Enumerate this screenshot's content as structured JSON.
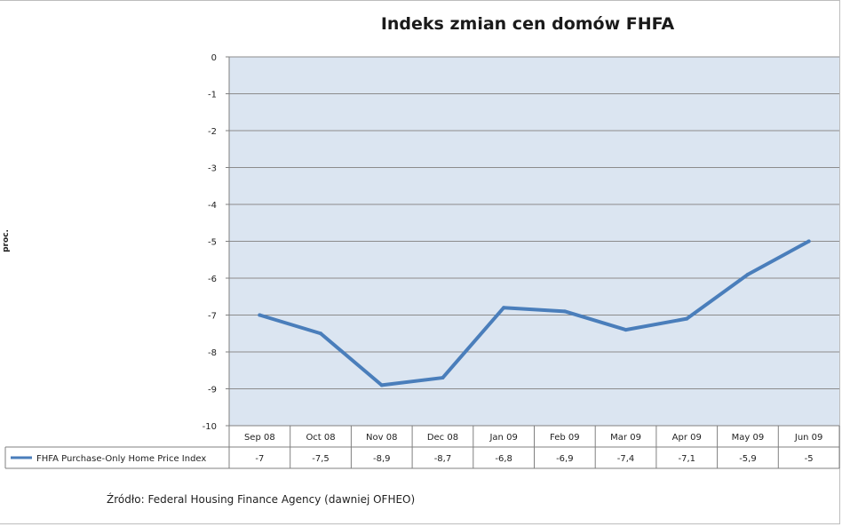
{
  "chart_data": {
    "type": "line",
    "title": "Indeks zmian cen domów FHFA",
    "ylabel": "proc.",
    "xlabel": "",
    "ylim": [
      -10,
      0
    ],
    "yticks": [
      0,
      -1,
      -2,
      -3,
      -4,
      -5,
      -6,
      -7,
      -8,
      -9,
      -10
    ],
    "grid": true,
    "legend_placement": "bottom-left (data table)",
    "categories": [
      "Sep 08",
      "Oct 08",
      "Nov 08",
      "Dec 08",
      "Jan 09",
      "Feb 09",
      "Mar 09",
      "Apr 09",
      "May 09",
      "Jun 09"
    ],
    "series": [
      {
        "name": "FHFA Purchase-Only Home Price Index",
        "values": [
          -7,
          -7.5,
          -8.9,
          -8.7,
          -6.8,
          -6.9,
          -7.4,
          -7.1,
          -5.9,
          -5
        ],
        "labels": [
          "-7",
          "-7,5",
          "-8,9",
          "-8,7",
          "-6,8",
          "-6,9",
          "-7,4",
          "-7,1",
          "-5,9",
          "-5"
        ],
        "color": "#4a7ebb"
      }
    ],
    "plot_background": "#dbe5f1",
    "gridline_color": "#8c8c8c"
  },
  "source": "Źródło:  Federal Housing Finance Agency (dawniej OFHEO)"
}
